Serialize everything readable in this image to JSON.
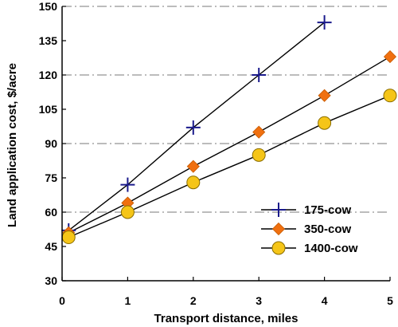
{
  "chart_data": {
    "type": "line",
    "title": "",
    "xlabel": "Transport distance, miles",
    "ylabel": "Land application cost, $/acre",
    "xlim": [
      0,
      5
    ],
    "ylim": [
      30,
      150
    ],
    "xticks": [
      0,
      1,
      2,
      3,
      4,
      5
    ],
    "yticks": [
      30,
      45,
      60,
      75,
      90,
      105,
      120,
      135,
      150
    ],
    "grid": {
      "horizontal_dashdot_at": [
        60,
        90,
        120,
        150
      ]
    },
    "legend_position": "lower-right",
    "series": [
      {
        "name": "175-cow",
        "marker": "plus",
        "color": "#1a1a8c",
        "line_color": "#000000",
        "x": [
          0.1,
          1,
          2,
          3,
          4
        ],
        "y": [
          52,
          72,
          97,
          120,
          143
        ]
      },
      {
        "name": "350-cow",
        "marker": "diamond",
        "color": "#f07010",
        "line_color": "#000000",
        "x": [
          0.1,
          1,
          2,
          3,
          4,
          5
        ],
        "y": [
          51,
          64,
          80,
          95,
          111,
          128
        ]
      },
      {
        "name": "1400-cow",
        "marker": "circle",
        "color": "#f5c518",
        "line_color": "#000000",
        "x": [
          0.1,
          1,
          2,
          3,
          4,
          5
        ],
        "y": [
          49,
          60,
          73,
          85,
          99,
          111
        ]
      }
    ]
  }
}
